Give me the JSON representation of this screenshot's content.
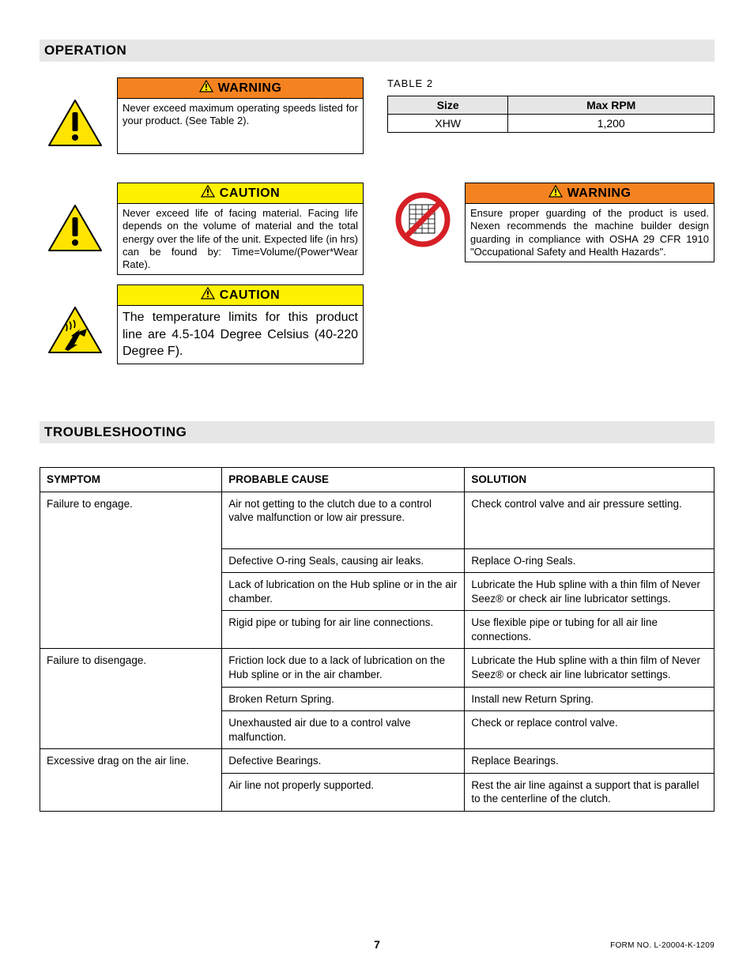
{
  "colors": {
    "section_bg": "#e6e6e6",
    "warning_bg": "#f58220",
    "caution_bg": "#fff200",
    "triangle_fill": "#fee400",
    "triangle_stroke": "#000000",
    "prohibit_red": "#d61f26",
    "border": "#000000"
  },
  "sections": {
    "operation": "OPERATION",
    "troubleshooting": "TROUBLESHOOTING"
  },
  "callouts": {
    "warning1": {
      "label": "WARNING",
      "body": "Never exceed maximum operating speeds listed for your product.  (See Table 2)."
    },
    "caution1": {
      "label": "CAUTION",
      "body": "Never exceed life of facing material.  Facing life depends on the volume of material and the total energy over the life of the unit.  Expected life (in hrs) can be found by: Time=Volume/(Power*Wear Rate)."
    },
    "caution2": {
      "label": "CAUTION",
      "body": "The temperature limits for this product line are 4.5-104 Degree Celsius (40-220 Degree F)."
    },
    "warning2": {
      "label": "WARNING",
      "body": "Ensure proper guarding of the product is used.  Nexen recommends the machine builder design guarding in compliance with OSHA 29 CFR 1910 \"Occupational Safety and Health Hazards\"."
    }
  },
  "table2": {
    "caption": "TABLE 2",
    "columns": [
      "Size",
      "Max RPM"
    ],
    "rows": [
      [
        "XHW",
        "1,200"
      ]
    ]
  },
  "troubleshooting": {
    "columns": [
      "SYMPTOM",
      "PROBABLE CAUSE",
      "SOLUTION"
    ],
    "rows": [
      {
        "symptom": "Failure to engage.",
        "cause": "Air not getting to the clutch due to a control valve malfunction or low air pressure.",
        "solution": "Check control valve and air pressure setting."
      },
      {
        "symptom": "",
        "cause": "Defective O-ring Seals, causing air leaks.",
        "solution": "Replace O-ring Seals."
      },
      {
        "symptom": "",
        "cause": "Lack of lubrication on the Hub spline or in the air chamber.",
        "solution": "Lubricate the Hub spline with a thin film of Never Seez® or check air line lubricator settings."
      },
      {
        "symptom": "",
        "cause": "Rigid pipe or tubing for air line connections.",
        "solution": "Use flexible pipe or tubing for all air line connections."
      },
      {
        "symptom": "Failure to disengage.",
        "cause": "Friction lock due to a lack of lubrication on the Hub spline or in the air chamber.",
        "solution": "Lubricate the Hub spline with a thin film of Never Seez® or check air line lubricator settings."
      },
      {
        "symptom": "",
        "cause": "Broken Return Spring.",
        "solution": "Install new Return Spring."
      },
      {
        "symptom": "",
        "cause": "Unexhausted air due to a control valve malfunction.",
        "solution": "Check or replace control valve."
      },
      {
        "symptom": "Excessive drag on the air line.",
        "cause": "Defective Bearings.",
        "solution": "Replace Bearings."
      },
      {
        "symptom": "",
        "cause": "Air line not properly supported.",
        "solution": "Rest the air line against a support that is parallel to the centerline of the clutch."
      }
    ],
    "row_spans": [
      4,
      3,
      2
    ]
  },
  "footer": {
    "page": "7",
    "form": "FORM NO. L-20004-K-1209"
  }
}
